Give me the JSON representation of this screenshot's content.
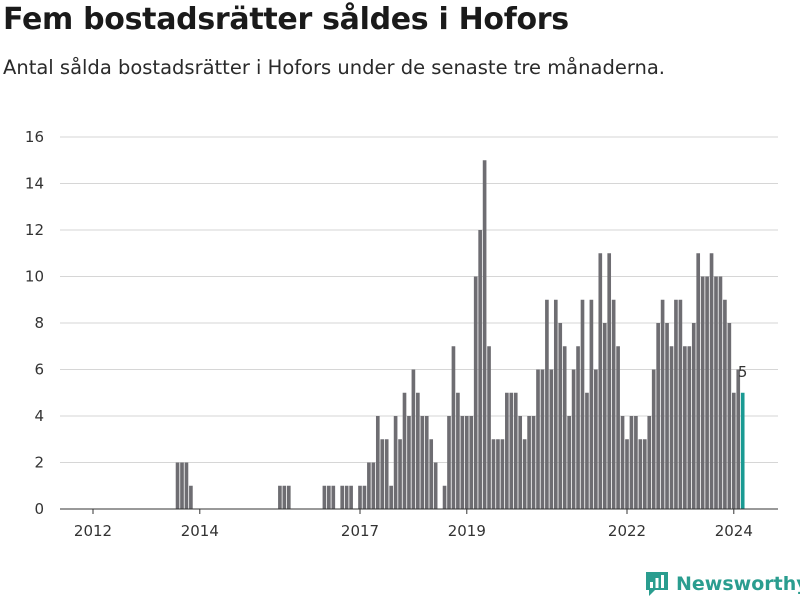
{
  "header": {
    "title": "Fem bostadsrätter såldes i Hofors",
    "subtitle": "Antal sålda bostadsrätter i Hofors under de senaste tre månaderna."
  },
  "footer": {
    "brand": "Newsworthy",
    "brand_color": "#2a9d8f"
  },
  "chart_data": {
    "type": "bar",
    "title": "Fem bostadsrätter såldes i Hofors",
    "subtitle": "Antal sålda bostadsrätter i Hofors under de senaste tre månaderna.",
    "ylim": [
      0,
      16
    ],
    "yticks": [
      0,
      2,
      4,
      6,
      8,
      10,
      12,
      14,
      16
    ],
    "xticks": [
      {
        "label": "2012",
        "x": "2012-01"
      },
      {
        "label": "2014",
        "x": "2014-01"
      },
      {
        "label": "2017",
        "x": "2017-01"
      },
      {
        "label": "2019",
        "x": "2019-01"
      },
      {
        "label": "2022",
        "x": "2022-01"
      },
      {
        "label": "2024",
        "x": "2024-01"
      }
    ],
    "grid": true,
    "colors": {
      "bar": "#6e6d72",
      "highlight": "#1a9a93"
    },
    "highlight_label": "5",
    "x": [
      "2013-08",
      "2013-09",
      "2013-10",
      "2013-11",
      "2013-12",
      "2015-07",
      "2015-08",
      "2015-09",
      "2016-05",
      "2016-06",
      "2016-07",
      "2016-09",
      "2016-10",
      "2016-11",
      "2016-12",
      "2017-01",
      "2017-02",
      "2017-03",
      "2017-04",
      "2017-05",
      "2017-06",
      "2017-07",
      "2017-08",
      "2017-09",
      "2017-10",
      "2017-11",
      "2017-12",
      "2018-01",
      "2018-02",
      "2018-03",
      "2018-04",
      "2018-05",
      "2018-06",
      "2018-07",
      "2018-08",
      "2018-09",
      "2018-10",
      "2018-11",
      "2018-12",
      "2019-01",
      "2019-02",
      "2019-03",
      "2019-04",
      "2019-05",
      "2019-06",
      "2019-07",
      "2019-08",
      "2019-09",
      "2019-10",
      "2019-11",
      "2019-12",
      "2020-01",
      "2020-02",
      "2020-03",
      "2020-04",
      "2020-05",
      "2020-06",
      "2020-07",
      "2020-08",
      "2020-09",
      "2020-10",
      "2020-11",
      "2020-12",
      "2021-01",
      "2021-02",
      "2021-03",
      "2021-04",
      "2021-05",
      "2021-06",
      "2021-07",
      "2021-08",
      "2021-09",
      "2021-10",
      "2021-11",
      "2021-12",
      "2022-01",
      "2022-02",
      "2022-03",
      "2022-04",
      "2022-05",
      "2022-06",
      "2022-07",
      "2022-08",
      "2022-09",
      "2022-10",
      "2022-11",
      "2022-12",
      "2023-01",
      "2023-02",
      "2023-03",
      "2023-04",
      "2023-05",
      "2023-06",
      "2023-07",
      "2023-08",
      "2023-09",
      "2023-10",
      "2023-11",
      "2023-12",
      "2024-01",
      "2024-02",
      "2024-03"
    ],
    "values": [
      2,
      2,
      2,
      1,
      0,
      1,
      1,
      1,
      1,
      1,
      1,
      1,
      1,
      1,
      0,
      1,
      1,
      2,
      2,
      4,
      3,
      3,
      1,
      4,
      3,
      5,
      4,
      6,
      5,
      4,
      4,
      3,
      2,
      0,
      1,
      4,
      7,
      5,
      4,
      4,
      4,
      10,
      12,
      15,
      7,
      3,
      3,
      3,
      5,
      5,
      5,
      4,
      3,
      4,
      4,
      6,
      6,
      9,
      6,
      9,
      8,
      7,
      4,
      6,
      7,
      9,
      5,
      9,
      6,
      11,
      8,
      11,
      9,
      7,
      4,
      3,
      4,
      4,
      3,
      3,
      4,
      6,
      8,
      9,
      8,
      7,
      9,
      9,
      7,
      7,
      8,
      11,
      10,
      10,
      11,
      10,
      10,
      9,
      8,
      5,
      6,
      5
    ]
  }
}
